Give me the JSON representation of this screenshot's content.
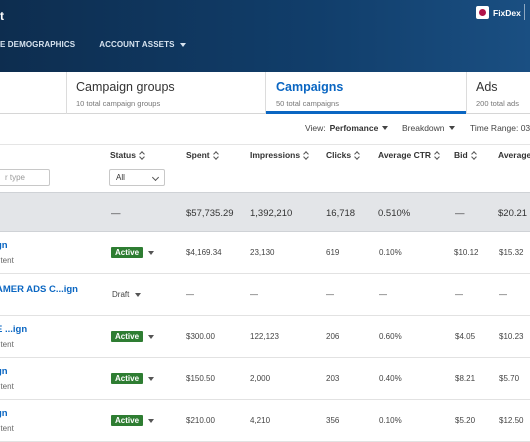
{
  "header": {
    "title_fragment": "t",
    "account_name": "FixDex",
    "nav": [
      {
        "label": "E DEMOGRAPHICS"
      },
      {
        "label": "ACCOUNT ASSETS"
      }
    ]
  },
  "tabs": [
    {
      "title": "Campaign groups",
      "sub": "10 total campaign groups"
    },
    {
      "title": "Campaigns",
      "sub": "50 total campaigns"
    },
    {
      "title": "Ads",
      "sub": "200 total ads"
    }
  ],
  "options": {
    "view_prefix": "View: ",
    "view_value": "Perfomance",
    "breakdown": "Breakdown",
    "time_range": "Time Range: 03,"
  },
  "columns": [
    "Status",
    "Spent",
    "Impressions",
    "Clicks",
    "Average CTR",
    "Bid",
    "Average"
  ],
  "filters": {
    "name_placeholder": "r type",
    "status_value": "All"
  },
  "totals": {
    "status": "—",
    "spent": "$57,735.29",
    "impressions": "1,392,210",
    "clicks": "16,718",
    "ctr": "0.510%",
    "bid": "—",
    "average": "$20.21"
  },
  "rows": [
    {
      "name": "gn",
      "sub": "ntent",
      "status": "Active",
      "spent": "$4,169.34",
      "impressions": "23,130",
      "clicks": "619",
      "ctr": "0.10%",
      "bid": "$10.12",
      "average": "$15.32"
    },
    {
      "name": "AMER ADS C...ign",
      "sub": "",
      "status": "Draft",
      "spent": "—",
      "impressions": "—",
      "clicks": "—",
      "ctr": "—",
      "bid": "—",
      "average": "—"
    },
    {
      "name": "E ...ign",
      "sub": "ntent",
      "status": "Active",
      "spent": "$300.00",
      "impressions": "122,123",
      "clicks": "206",
      "ctr": "0.60%",
      "bid": "$4.05",
      "average": "$10.23"
    },
    {
      "name": "gn",
      "sub": "ntent",
      "status": "Active",
      "spent": "$150.50",
      "impressions": "2,000",
      "clicks": "203",
      "ctr": "0.40%",
      "bid": "$8.21",
      "average": "$5.70"
    },
    {
      "name": "gn",
      "sub": "ntent",
      "status": "Active",
      "spent": "$210.00",
      "impressions": "4,210",
      "clicks": "356",
      "ctr": "0.10%",
      "bid": "$5.20",
      "average": "$12.50"
    }
  ],
  "colors": {
    "brand_dark": "#0d2d4f",
    "link": "#0a66c2",
    "active_badge": "#2e7d32",
    "totals_bg": "#e3e5e8"
  }
}
